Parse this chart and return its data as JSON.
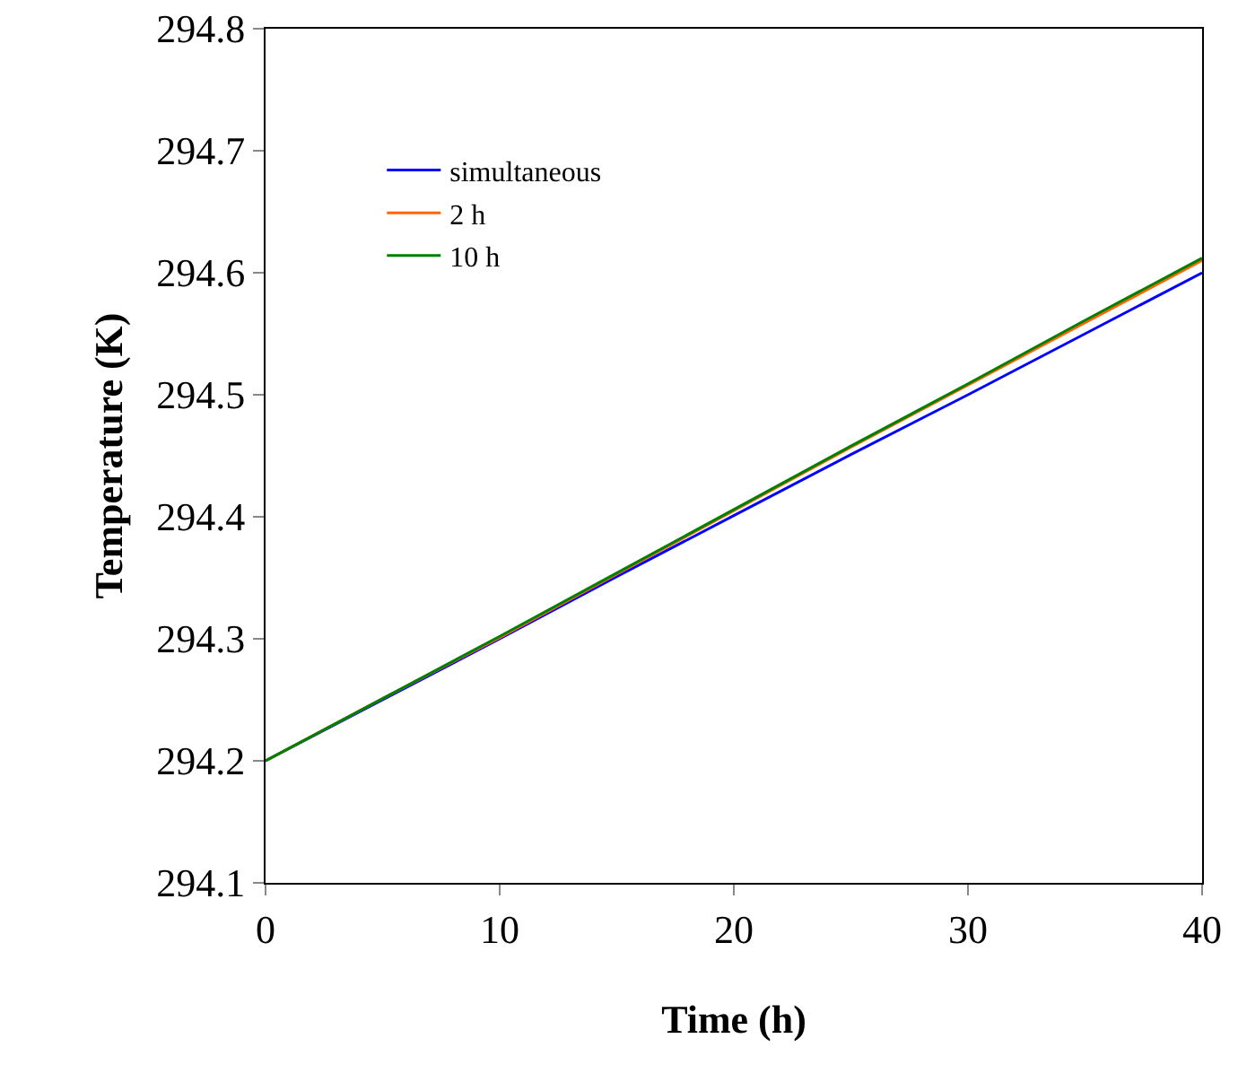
{
  "chart_data": {
    "type": "line",
    "xlabel": "Time (h)",
    "ylabel": "Temperature (K)",
    "x": [
      0,
      5,
      10,
      15,
      20,
      25,
      30,
      35,
      40
    ],
    "series": [
      {
        "name": "simultaneous",
        "color": "#0000ff",
        "values": [
          294.2,
          294.25,
          294.3,
          294.351,
          294.401,
          294.451,
          294.5,
          294.55,
          294.6
        ]
      },
      {
        "name": "2 h",
        "color": "#ff6600",
        "values": [
          294.2,
          294.251,
          294.301,
          294.353,
          294.405,
          294.457,
          294.508,
          294.559,
          294.61
        ]
      },
      {
        "name": "10 h",
        "color": "#008000",
        "values": [
          294.2,
          294.251,
          294.302,
          294.354,
          294.406,
          294.458,
          294.509,
          294.561,
          294.612
        ]
      }
    ],
    "xlim": [
      0,
      40
    ],
    "xticks": [
      0,
      10,
      20,
      30,
      40
    ],
    "ylim": [
      294.1,
      294.8
    ],
    "yticks": [
      294.1,
      294.2,
      294.3,
      294.4,
      294.5,
      294.6,
      294.7,
      294.8
    ],
    "grid": false,
    "legend": "top left",
    "marker": "none",
    "line_style": "solid"
  }
}
